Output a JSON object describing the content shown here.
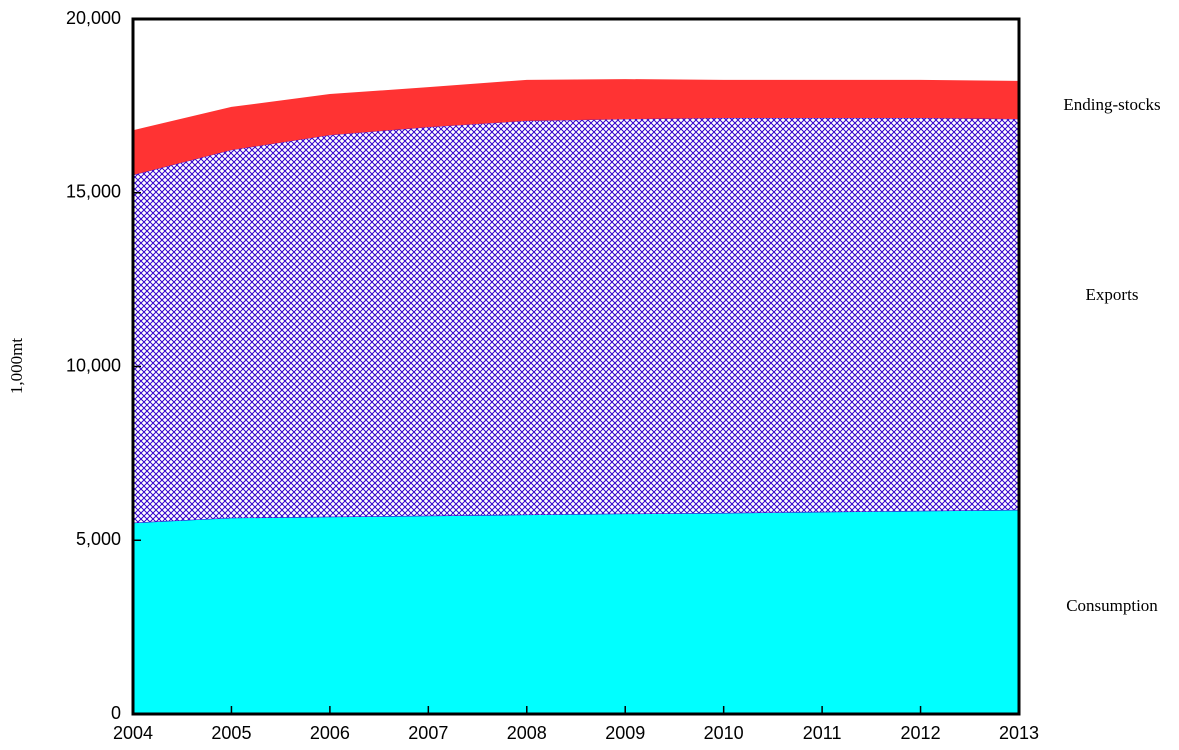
{
  "chart_data": {
    "type": "stacked_area",
    "y_label": "1,000mt",
    "x": [
      2004,
      2005,
      2006,
      2007,
      2008,
      2009,
      2010,
      2011,
      2012,
      2013
    ],
    "xlim": [
      2004,
      2013
    ],
    "xticks": [
      2004,
      2005,
      2006,
      2007,
      2008,
      2009,
      2010,
      2011,
      2012,
      2013
    ],
    "ylim": [
      0,
      20000
    ],
    "yticks": [
      0,
      {
        "value": 5000,
        "label": "5,000"
      },
      {
        "value": 10000,
        "label": "10,000"
      },
      {
        "value": 15000,
        "label": "15,000"
      },
      {
        "value": 20000,
        "label": "20,000"
      }
    ],
    "series": [
      {
        "name": "Consumption",
        "color": "#00ffff",
        "values": [
          5500,
          5640,
          5670,
          5700,
          5730,
          5760,
          5780,
          5810,
          5840,
          5870
        ]
      },
      {
        "name": "Exports",
        "color": "#3300cc",
        "values": [
          10010,
          10590,
          10990,
          11190,
          11340,
          11360,
          11370,
          11340,
          11310,
          11250
        ]
      },
      {
        "name": "Ending-stocks",
        "color": "#ff3333",
        "values": [
          1290,
          1240,
          1180,
          1150,
          1180,
          1150,
          1100,
          1100,
          1100,
          1100
        ]
      }
    ]
  }
}
